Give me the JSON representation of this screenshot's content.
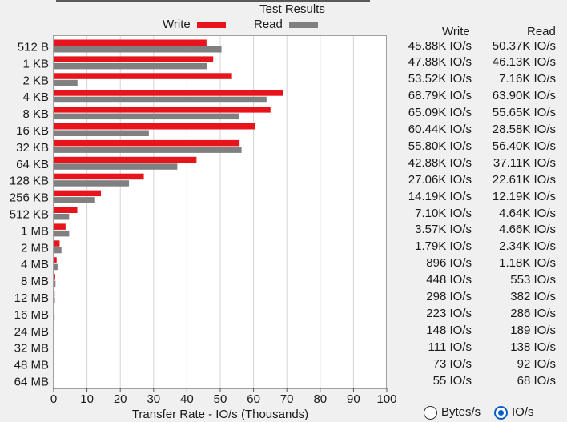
{
  "chart_title": "Test Results",
  "legend": {
    "write_label": "Write",
    "read_label": "Read"
  },
  "colors": {
    "write": "#e8141c",
    "read": "#808080",
    "grid": "#d4d4d4",
    "radio_selected": "#0a5dc2"
  },
  "table": {
    "write_header": "Write",
    "read_header": "Read",
    "rows": [
      {
        "write": "45.88K IO/s",
        "read": "50.37K IO/s"
      },
      {
        "write": "47.88K IO/s",
        "read": "46.13K IO/s"
      },
      {
        "write": "53.52K IO/s",
        "read": "7.16K IO/s"
      },
      {
        "write": "68.79K IO/s",
        "read": "63.90K IO/s"
      },
      {
        "write": "65.09K IO/s",
        "read": "55.65K IO/s"
      },
      {
        "write": "60.44K IO/s",
        "read": "28.58K IO/s"
      },
      {
        "write": "55.80K IO/s",
        "read": "56.40K IO/s"
      },
      {
        "write": "42.88K IO/s",
        "read": "37.11K IO/s"
      },
      {
        "write": "27.06K IO/s",
        "read": "22.61K IO/s"
      },
      {
        "write": "14.19K IO/s",
        "read": "12.19K IO/s"
      },
      {
        "write": "7.10K IO/s",
        "read": "4.64K IO/s"
      },
      {
        "write": "3.57K IO/s",
        "read": "4.66K IO/s"
      },
      {
        "write": "1.79K IO/s",
        "read": "2.34K IO/s"
      },
      {
        "write": "896 IO/s",
        "read": "1.18K IO/s"
      },
      {
        "write": "448 IO/s",
        "read": "553 IO/s"
      },
      {
        "write": "298 IO/s",
        "read": "382 IO/s"
      },
      {
        "write": "223 IO/s",
        "read": "286 IO/s"
      },
      {
        "write": "148 IO/s",
        "read": "189 IO/s"
      },
      {
        "write": "111 IO/s",
        "read": "138 IO/s"
      },
      {
        "write": "73 IO/s",
        "read": "92 IO/s"
      },
      {
        "write": "55 IO/s",
        "read": "68 IO/s"
      }
    ]
  },
  "display_mode": {
    "options": [
      "Bytes/s",
      "IO/s"
    ],
    "selected": "IO/s"
  },
  "chart_data": {
    "type": "bar",
    "orientation": "horizontal",
    "title": "Test Results",
    "xlabel": "Transfer Rate - IO/s (Thousands)",
    "ylabel": "",
    "xlim": [
      0,
      100
    ],
    "xticks": [
      0,
      10,
      20,
      30,
      40,
      50,
      60,
      70,
      80,
      90,
      100
    ],
    "grid": true,
    "legend_position": "top-center",
    "categories": [
      "512 B",
      "1 KB",
      "2 KB",
      "4 KB",
      "8 KB",
      "16 KB",
      "32 KB",
      "64 KB",
      "128 KB",
      "256 KB",
      "512 KB",
      "1 MB",
      "2 MB",
      "4 MB",
      "8 MB",
      "12 MB",
      "16 MB",
      "24 MB",
      "32 MB",
      "48 MB",
      "64 MB"
    ],
    "series": [
      {
        "name": "Write",
        "values": [
          45.88,
          47.88,
          53.52,
          68.79,
          65.09,
          60.44,
          55.8,
          42.88,
          27.06,
          14.19,
          7.1,
          3.57,
          1.79,
          0.896,
          0.448,
          0.298,
          0.223,
          0.148,
          0.111,
          0.073,
          0.055
        ]
      },
      {
        "name": "Read",
        "values": [
          50.37,
          46.13,
          7.16,
          63.9,
          55.65,
          28.58,
          56.4,
          37.11,
          22.61,
          12.19,
          4.64,
          4.66,
          2.34,
          1.18,
          0.553,
          0.382,
          0.286,
          0.189,
          0.138,
          0.092,
          0.068
        ]
      }
    ]
  }
}
